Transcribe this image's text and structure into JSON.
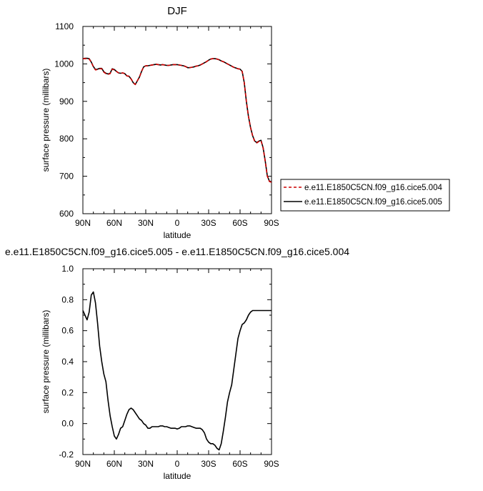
{
  "chart_data": [
    {
      "type": "line",
      "title": "DJF",
      "xlabel": "latitude",
      "ylabel": "surface pressure (millibars)",
      "xlim": [
        90,
        -90
      ],
      "ylim": [
        600,
        1100
      ],
      "x_ticks": [
        {
          "value": 90,
          "label": "90N"
        },
        {
          "value": 60,
          "label": "60N"
        },
        {
          "value": 30,
          "label": "30N"
        },
        {
          "value": 0,
          "label": "0"
        },
        {
          "value": -30,
          "label": "30S"
        },
        {
          "value": -60,
          "label": "60S"
        },
        {
          "value": -90,
          "label": "90S"
        }
      ],
      "y_ticks": [
        {
          "value": 600,
          "label": "600"
        },
        {
          "value": 700,
          "label": "700"
        },
        {
          "value": 800,
          "label": "800"
        },
        {
          "value": 900,
          "label": "900"
        },
        {
          "value": 1000,
          "label": "1000"
        },
        {
          "value": 1100,
          "label": "1100"
        }
      ],
      "legend": {
        "placement": "outside-right"
      },
      "series": [
        {
          "name": "e.e11.E1850C5CN.f09_g16.cice5.004",
          "color": "#cc0000",
          "dash": "dashed",
          "x": [
            90,
            88,
            86,
            84,
            82,
            80,
            78,
            76,
            74,
            72,
            70,
            68,
            66,
            64,
            62,
            60,
            58,
            56,
            54,
            52,
            50,
            48,
            46,
            44,
            42,
            40,
            38,
            36,
            34,
            32,
            30,
            28,
            26,
            24,
            22,
            20,
            18,
            16,
            14,
            12,
            10,
            8,
            6,
            4,
            2,
            0,
            -2,
            -4,
            -6,
            -8,
            -10,
            -12,
            -14,
            -16,
            -18,
            -20,
            -22,
            -24,
            -26,
            -28,
            -30,
            -32,
            -34,
            -36,
            -38,
            -40,
            -42,
            -44,
            -46,
            -48,
            -50,
            -52,
            -54,
            -56,
            -58,
            -60,
            -62,
            -64,
            -66,
            -68,
            -70,
            -72,
            -74,
            -76,
            -78,
            -80,
            -82,
            -84,
            -86,
            -88,
            -90
          ],
          "y": [
            1014,
            1014,
            1014,
            1013,
            1005,
            992,
            984,
            985,
            987,
            987,
            978,
            974,
            972,
            974,
            986,
            984,
            980,
            976,
            975,
            976,
            974,
            968,
            967,
            960,
            950,
            945,
            955,
            965,
            980,
            992,
            995,
            995,
            996,
            997,
            998,
            999,
            998,
            997,
            998,
            997,
            996,
            996,
            997,
            998,
            998,
            998,
            997,
            996,
            995,
            993,
            990,
            990,
            991,
            992,
            994,
            995,
            997,
            1000,
            1003,
            1006,
            1010,
            1013,
            1014,
            1014,
            1013,
            1011,
            1008,
            1006,
            1003,
            1000,
            997,
            994,
            991,
            989,
            987,
            986,
            980,
            950,
            900,
            860,
            830,
            808,
            793,
            789,
            793,
            795,
            775,
            740,
            700,
            686,
            684
          ]
        },
        {
          "name": "e.e11.E1850C5CN.f09_g16.cice5.005",
          "color": "#000000",
          "dash": "solid",
          "x": [
            90,
            88,
            86,
            84,
            82,
            80,
            78,
            76,
            74,
            72,
            70,
            68,
            66,
            64,
            62,
            60,
            58,
            56,
            54,
            52,
            50,
            48,
            46,
            44,
            42,
            40,
            38,
            36,
            34,
            32,
            30,
            28,
            26,
            24,
            22,
            20,
            18,
            16,
            14,
            12,
            10,
            8,
            6,
            4,
            2,
            0,
            -2,
            -4,
            -6,
            -8,
            -10,
            -12,
            -14,
            -16,
            -18,
            -20,
            -22,
            -24,
            -26,
            -28,
            -30,
            -32,
            -34,
            -36,
            -38,
            -40,
            -42,
            -44,
            -46,
            -48,
            -50,
            -52,
            -54,
            -56,
            -58,
            -60,
            -62,
            -64,
            -66,
            -68,
            -70,
            -72,
            -74,
            -76,
            -78,
            -80,
            -82,
            -84,
            -86,
            -88,
            -90
          ],
          "y": [
            1014,
            1015,
            1015,
            1014,
            1005,
            993,
            985,
            986,
            988,
            988,
            979,
            975,
            973,
            975,
            987,
            985,
            980,
            976,
            975,
            976,
            974,
            968,
            967,
            960,
            950,
            945,
            955,
            965,
            980,
            992,
            995,
            995,
            996,
            997,
            998,
            999,
            998,
            997,
            998,
            997,
            996,
            996,
            997,
            998,
            998,
            998,
            997,
            996,
            995,
            993,
            990,
            990,
            991,
            992,
            994,
            995,
            997,
            1000,
            1003,
            1006,
            1010,
            1013,
            1014,
            1014,
            1013,
            1011,
            1008,
            1006,
            1003,
            1000,
            997,
            994,
            991,
            989,
            987,
            986,
            980,
            950,
            900,
            860,
            830,
            808,
            794,
            790,
            794,
            796,
            776,
            741,
            701,
            687,
            685
          ]
        }
      ]
    },
    {
      "type": "line",
      "title": "e.e11.E1850C5CN.f09_g16.cice5.005 - e.e11.E1850C5CN.f09_g16.cice5.004",
      "xlabel": "latitude",
      "ylabel": "surface pressure (millibars)",
      "xlim": [
        90,
        -90
      ],
      "ylim": [
        -0.2,
        1.0
      ],
      "x_ticks": [
        {
          "value": 90,
          "label": "90N"
        },
        {
          "value": 60,
          "label": "60N"
        },
        {
          "value": 30,
          "label": "30N"
        },
        {
          "value": 0,
          "label": "0"
        },
        {
          "value": -30,
          "label": "30S"
        },
        {
          "value": -60,
          "label": "60S"
        },
        {
          "value": -90,
          "label": "90S"
        }
      ],
      "y_ticks": [
        {
          "value": -0.2,
          "label": "-0.2"
        },
        {
          "value": 0.0,
          "label": "0.0"
        },
        {
          "value": 0.2,
          "label": "0.2"
        },
        {
          "value": 0.4,
          "label": "0.4"
        },
        {
          "value": 0.6,
          "label": "0.6"
        },
        {
          "value": 0.8,
          "label": "0.8"
        },
        {
          "value": 1.0,
          "label": "1.0"
        }
      ],
      "series": [
        {
          "color": "#000000",
          "dash": "solid",
          "x": [
            90,
            88,
            86,
            84,
            82,
            80,
            78,
            76,
            74,
            72,
            70,
            68,
            66,
            64,
            62,
            60,
            58,
            56,
            54,
            52,
            50,
            48,
            46,
            44,
            42,
            40,
            38,
            36,
            34,
            32,
            30,
            28,
            26,
            24,
            22,
            20,
            18,
            16,
            14,
            12,
            10,
            8,
            6,
            4,
            2,
            0,
            -2,
            -4,
            -6,
            -8,
            -10,
            -12,
            -14,
            -16,
            -18,
            -20,
            -22,
            -24,
            -26,
            -28,
            -30,
            -32,
            -34,
            -36,
            -38,
            -40,
            -42,
            -44,
            -46,
            -48,
            -50,
            -52,
            -54,
            -56,
            -58,
            -60,
            -62,
            -64,
            -66,
            -68,
            -70,
            -72,
            -74,
            -76,
            -78,
            -80,
            -82,
            -84,
            -86,
            -88,
            -90
          ],
          "y": [
            0.73,
            0.7,
            0.67,
            0.72,
            0.83,
            0.85,
            0.78,
            0.65,
            0.5,
            0.4,
            0.32,
            0.27,
            0.15,
            0.05,
            -0.02,
            -0.08,
            -0.1,
            -0.07,
            -0.03,
            -0.02,
            0.02,
            0.06,
            0.09,
            0.1,
            0.09,
            0.07,
            0.05,
            0.03,
            0.02,
            0.0,
            -0.01,
            -0.03,
            -0.03,
            -0.02,
            -0.02,
            -0.02,
            -0.02,
            -0.015,
            -0.015,
            -0.02,
            -0.02,
            -0.025,
            -0.03,
            -0.03,
            -0.03,
            -0.035,
            -0.03,
            -0.02,
            -0.02,
            -0.02,
            -0.015,
            -0.015,
            -0.02,
            -0.025,
            -0.03,
            -0.03,
            -0.03,
            -0.04,
            -0.06,
            -0.1,
            -0.12,
            -0.13,
            -0.13,
            -0.14,
            -0.16,
            -0.17,
            -0.13,
            -0.05,
            0.04,
            0.14,
            0.2,
            0.25,
            0.35,
            0.45,
            0.55,
            0.6,
            0.64,
            0.65,
            0.67,
            0.7,
            0.72,
            0.73,
            0.73,
            0.73,
            0.73,
            0.73,
            0.73,
            0.73,
            0.73,
            0.73,
            0.73
          ]
        }
      ]
    }
  ]
}
